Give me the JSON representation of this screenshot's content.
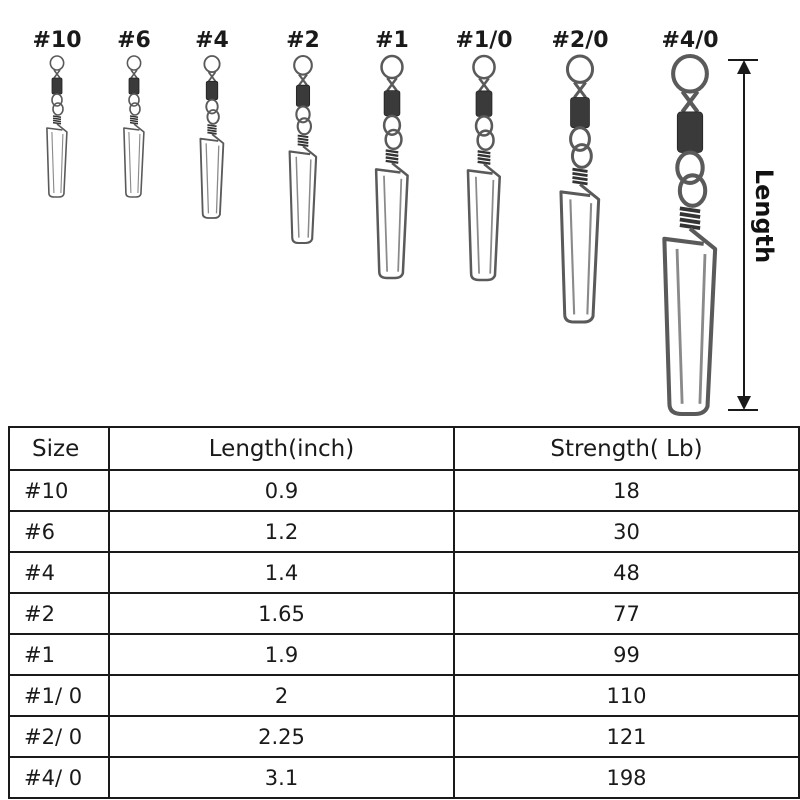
{
  "illustration": {
    "size_labels": [
      "#10",
      "#6",
      "#4",
      "#2",
      "#1",
      "#1/0",
      "#2/0",
      "#4/0"
    ],
    "length_label": "Length",
    "snap_icon": "rolling-swivel-coastlock-snap-icon",
    "colors": {
      "metal_stroke": "#5a5a5a",
      "barrel": "#3a3a3a",
      "text": "#1a1a1a"
    }
  },
  "table": {
    "headers": [
      "Size",
      "Length(inch)",
      "Strength( Lb)"
    ],
    "rows": [
      [
        "#10",
        "0.9",
        "18"
      ],
      [
        "#6",
        "1.2",
        "30"
      ],
      [
        "#4",
        "1.4",
        "48"
      ],
      [
        "#2",
        "1.65",
        "77"
      ],
      [
        "#1",
        "1.9",
        "99"
      ],
      [
        "#1/ 0",
        "2",
        "110"
      ],
      [
        "#2/ 0",
        "2.25",
        "121"
      ],
      [
        "#4/ 0",
        "3.1",
        "198"
      ]
    ]
  }
}
